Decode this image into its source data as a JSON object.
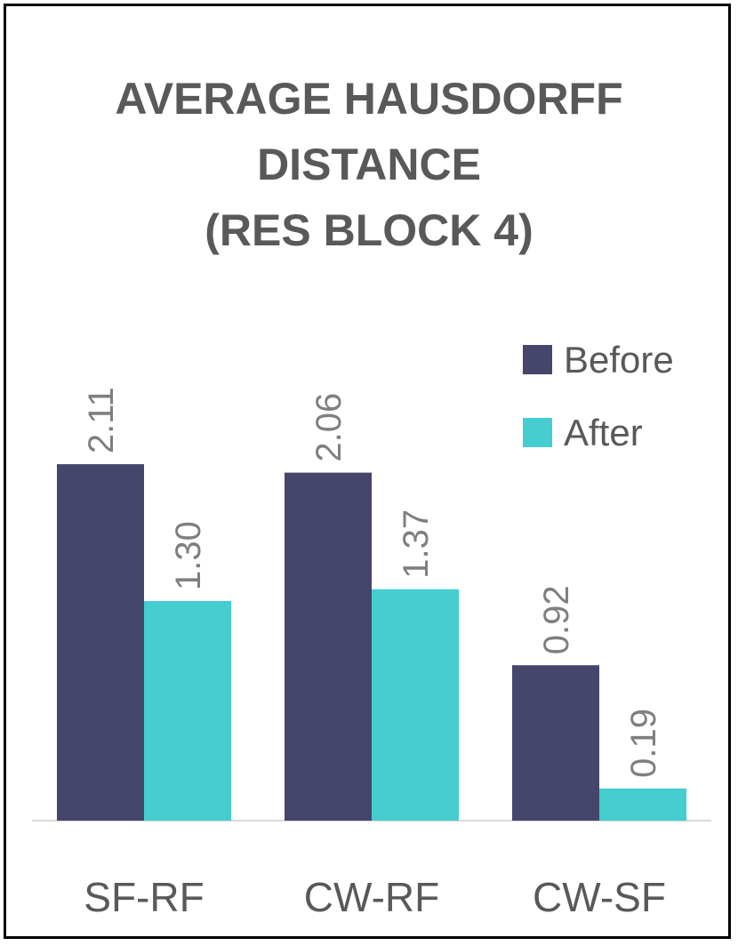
{
  "chart_data": {
    "type": "bar",
    "title_lines": [
      "AVERAGE HAUSDORFF",
      "DISTANCE",
      "(RES BLOCK 4)"
    ],
    "categories": [
      "SF-RF",
      "CW-RF",
      "CW-SF"
    ],
    "series": [
      {
        "name": "Before",
        "color": "#46456b",
        "values": [
          2.11,
          2.06,
          0.92
        ]
      },
      {
        "name": "After",
        "color": "#45cdd0",
        "values": [
          1.3,
          1.37,
          0.19
        ]
      }
    ],
    "data_labels": [
      [
        "2.11",
        "2.06",
        "0.92"
      ],
      [
        "1.30",
        "1.37",
        "0.19"
      ]
    ],
    "ylim": [
      0,
      2.6
    ],
    "grid": false,
    "legend_position": "top-right"
  }
}
